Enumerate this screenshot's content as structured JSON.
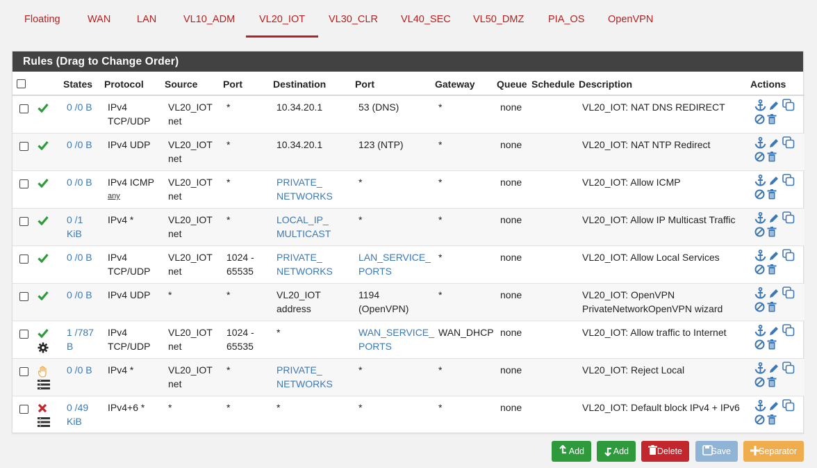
{
  "tabs": [
    "Floating",
    "WAN",
    "LAN",
    "VL10_ADM",
    "VL20_IOT",
    "VL30_CLR",
    "VL40_SEC",
    "VL50_DMZ",
    "PIA_OS",
    "OpenVPN"
  ],
  "active_tab": "VL20_IOT",
  "panel_title": "Rules (Drag to Change Order)",
  "columns": {
    "states": "States",
    "protocol": "Protocol",
    "source": "Source",
    "port": "Port",
    "destination": "Destination",
    "dport": "Port",
    "gateway": "Gateway",
    "queue": "Queue",
    "schedule": "Schedule",
    "description": "Description",
    "actions": "Actions"
  },
  "rows": [
    {
      "status": "pass",
      "states1": "0 /0 B",
      "states2": "",
      "proto1": "IPv4",
      "proto2": "TCP/UDP",
      "proto_extra": "",
      "src1": "VL20_IOT",
      "src2": "net",
      "sport1": "*",
      "sport2": "",
      "dst1": "10.34.20.1",
      "dst2": "",
      "dst_link": false,
      "dport1": "53 (DNS)",
      "dport2": "",
      "dport_link": false,
      "gateway": "*",
      "queue": "none",
      "desc1": "VL20_IOT: NAT DNS REDIRECT",
      "desc2": ""
    },
    {
      "status": "pass",
      "states1": "0 /0 B",
      "states2": "",
      "proto1": "IPv4 UDP",
      "proto2": "",
      "proto_extra": "",
      "src1": "VL20_IOT",
      "src2": "net",
      "sport1": "*",
      "sport2": "",
      "dst1": "10.34.20.1",
      "dst2": "",
      "dst_link": false,
      "dport1": "123 (NTP)",
      "dport2": "",
      "dport_link": false,
      "gateway": "*",
      "queue": "none",
      "desc1": "VL20_IOT: NAT NTP Redirect",
      "desc2": ""
    },
    {
      "status": "pass",
      "states1": "0 /0 B",
      "states2": "",
      "proto1": "IPv4 ICMP",
      "proto2": "",
      "proto_extra": "any",
      "src1": "VL20_IOT",
      "src2": "net",
      "sport1": "*",
      "sport2": "",
      "dst1": "PRIVATE_",
      "dst2": "NETWORKS",
      "dst_link": true,
      "dport1": "*",
      "dport2": "",
      "dport_link": false,
      "gateway": "*",
      "queue": "none",
      "desc1": "VL20_IOT: Allow ICMP",
      "desc2": ""
    },
    {
      "status": "pass",
      "states1": "0 /1",
      "states2": "KiB",
      "proto1": "IPv4 *",
      "proto2": "",
      "proto_extra": "",
      "src1": "VL20_IOT",
      "src2": "net",
      "sport1": "*",
      "sport2": "",
      "dst1": "LOCAL_IP_",
      "dst2": "MULTICAST",
      "dst_link": true,
      "dport1": "*",
      "dport2": "",
      "dport_link": false,
      "gateway": "*",
      "queue": "none",
      "desc1": "VL20_IOT: Allow IP Multicast Traffic",
      "desc2": ""
    },
    {
      "status": "pass",
      "states1": "0 /0 B",
      "states2": "",
      "proto1": "IPv4",
      "proto2": "TCP/UDP",
      "proto_extra": "",
      "src1": "VL20_IOT",
      "src2": "net",
      "sport1": "1024 -",
      "sport2": "65535",
      "dst1": "PRIVATE_",
      "dst2": "NETWORKS",
      "dst_link": true,
      "dport1": "LAN_SERVICE_",
      "dport2": "PORTS",
      "dport_link": true,
      "gateway": "*",
      "queue": "none",
      "desc1": "VL20_IOT: Allow Local Services",
      "desc2": ""
    },
    {
      "status": "pass",
      "states1": "0 /0 B",
      "states2": "",
      "proto1": "IPv4 UDP",
      "proto2": "",
      "proto_extra": "",
      "src1": "*",
      "src2": "",
      "sport1": "*",
      "sport2": "",
      "dst1": "VL20_IOT",
      "dst2": "address",
      "dst_link": false,
      "dport1": "1194",
      "dport2": "(OpenVPN)",
      "dport_link": false,
      "gateway": "*",
      "queue": "none",
      "desc1": "VL20_IOT: OpenVPN",
      "desc2": "PrivateNetworkOpenVPN wizard"
    },
    {
      "status": "pass-gear",
      "states1": "1 /787",
      "states2": "B",
      "proto1": "IPv4",
      "proto2": "TCP/UDP",
      "proto_extra": "",
      "src1": "VL20_IOT",
      "src2": "net",
      "sport1": "1024 -",
      "sport2": "65535",
      "dst1": "*",
      "dst2": "",
      "dst_link": false,
      "dport1": "WAN_SERVICE_",
      "dport2": "PORTS",
      "dport_link": true,
      "gateway": "WAN_DHCP",
      "queue": "none",
      "desc1": "VL20_IOT: Allow traffic to Internet",
      "desc2": ""
    },
    {
      "status": "reject",
      "states1": "0 /0 B",
      "states2": "",
      "proto1": "IPv4 *",
      "proto2": "",
      "proto_extra": "",
      "src1": "VL20_IOT",
      "src2": "net",
      "sport1": "*",
      "sport2": "",
      "dst1": "PRIVATE_",
      "dst2": "NETWORKS",
      "dst_link": true,
      "dport1": "*",
      "dport2": "",
      "dport_link": false,
      "gateway": "*",
      "queue": "none",
      "desc1": "VL20_IOT: Reject Local",
      "desc2": ""
    },
    {
      "status": "block",
      "states1": "0 /49",
      "states2": "KiB",
      "proto1": "IPv4+6 *",
      "proto2": "",
      "proto_extra": "",
      "src1": "*",
      "src2": "",
      "sport1": "*",
      "sport2": "",
      "dst1": "*",
      "dst2": "",
      "dst_link": false,
      "dport1": "*",
      "dport2": "",
      "dport_link": false,
      "gateway": "*",
      "queue": "none",
      "desc1": "VL20_IOT: Default block IPv4 + IPv6",
      "desc2": ""
    }
  ],
  "buttons": {
    "add_top": "Add",
    "add_bottom": "Add",
    "delete": "Delete",
    "save": "Save",
    "separator": "Separator"
  },
  "colors": {
    "accent": "#b22222",
    "link": "#3c78b5",
    "pass": "#2e9a3b",
    "block": "#c1272d",
    "reject": "#f0ad4e",
    "header_bg": "#424242"
  }
}
